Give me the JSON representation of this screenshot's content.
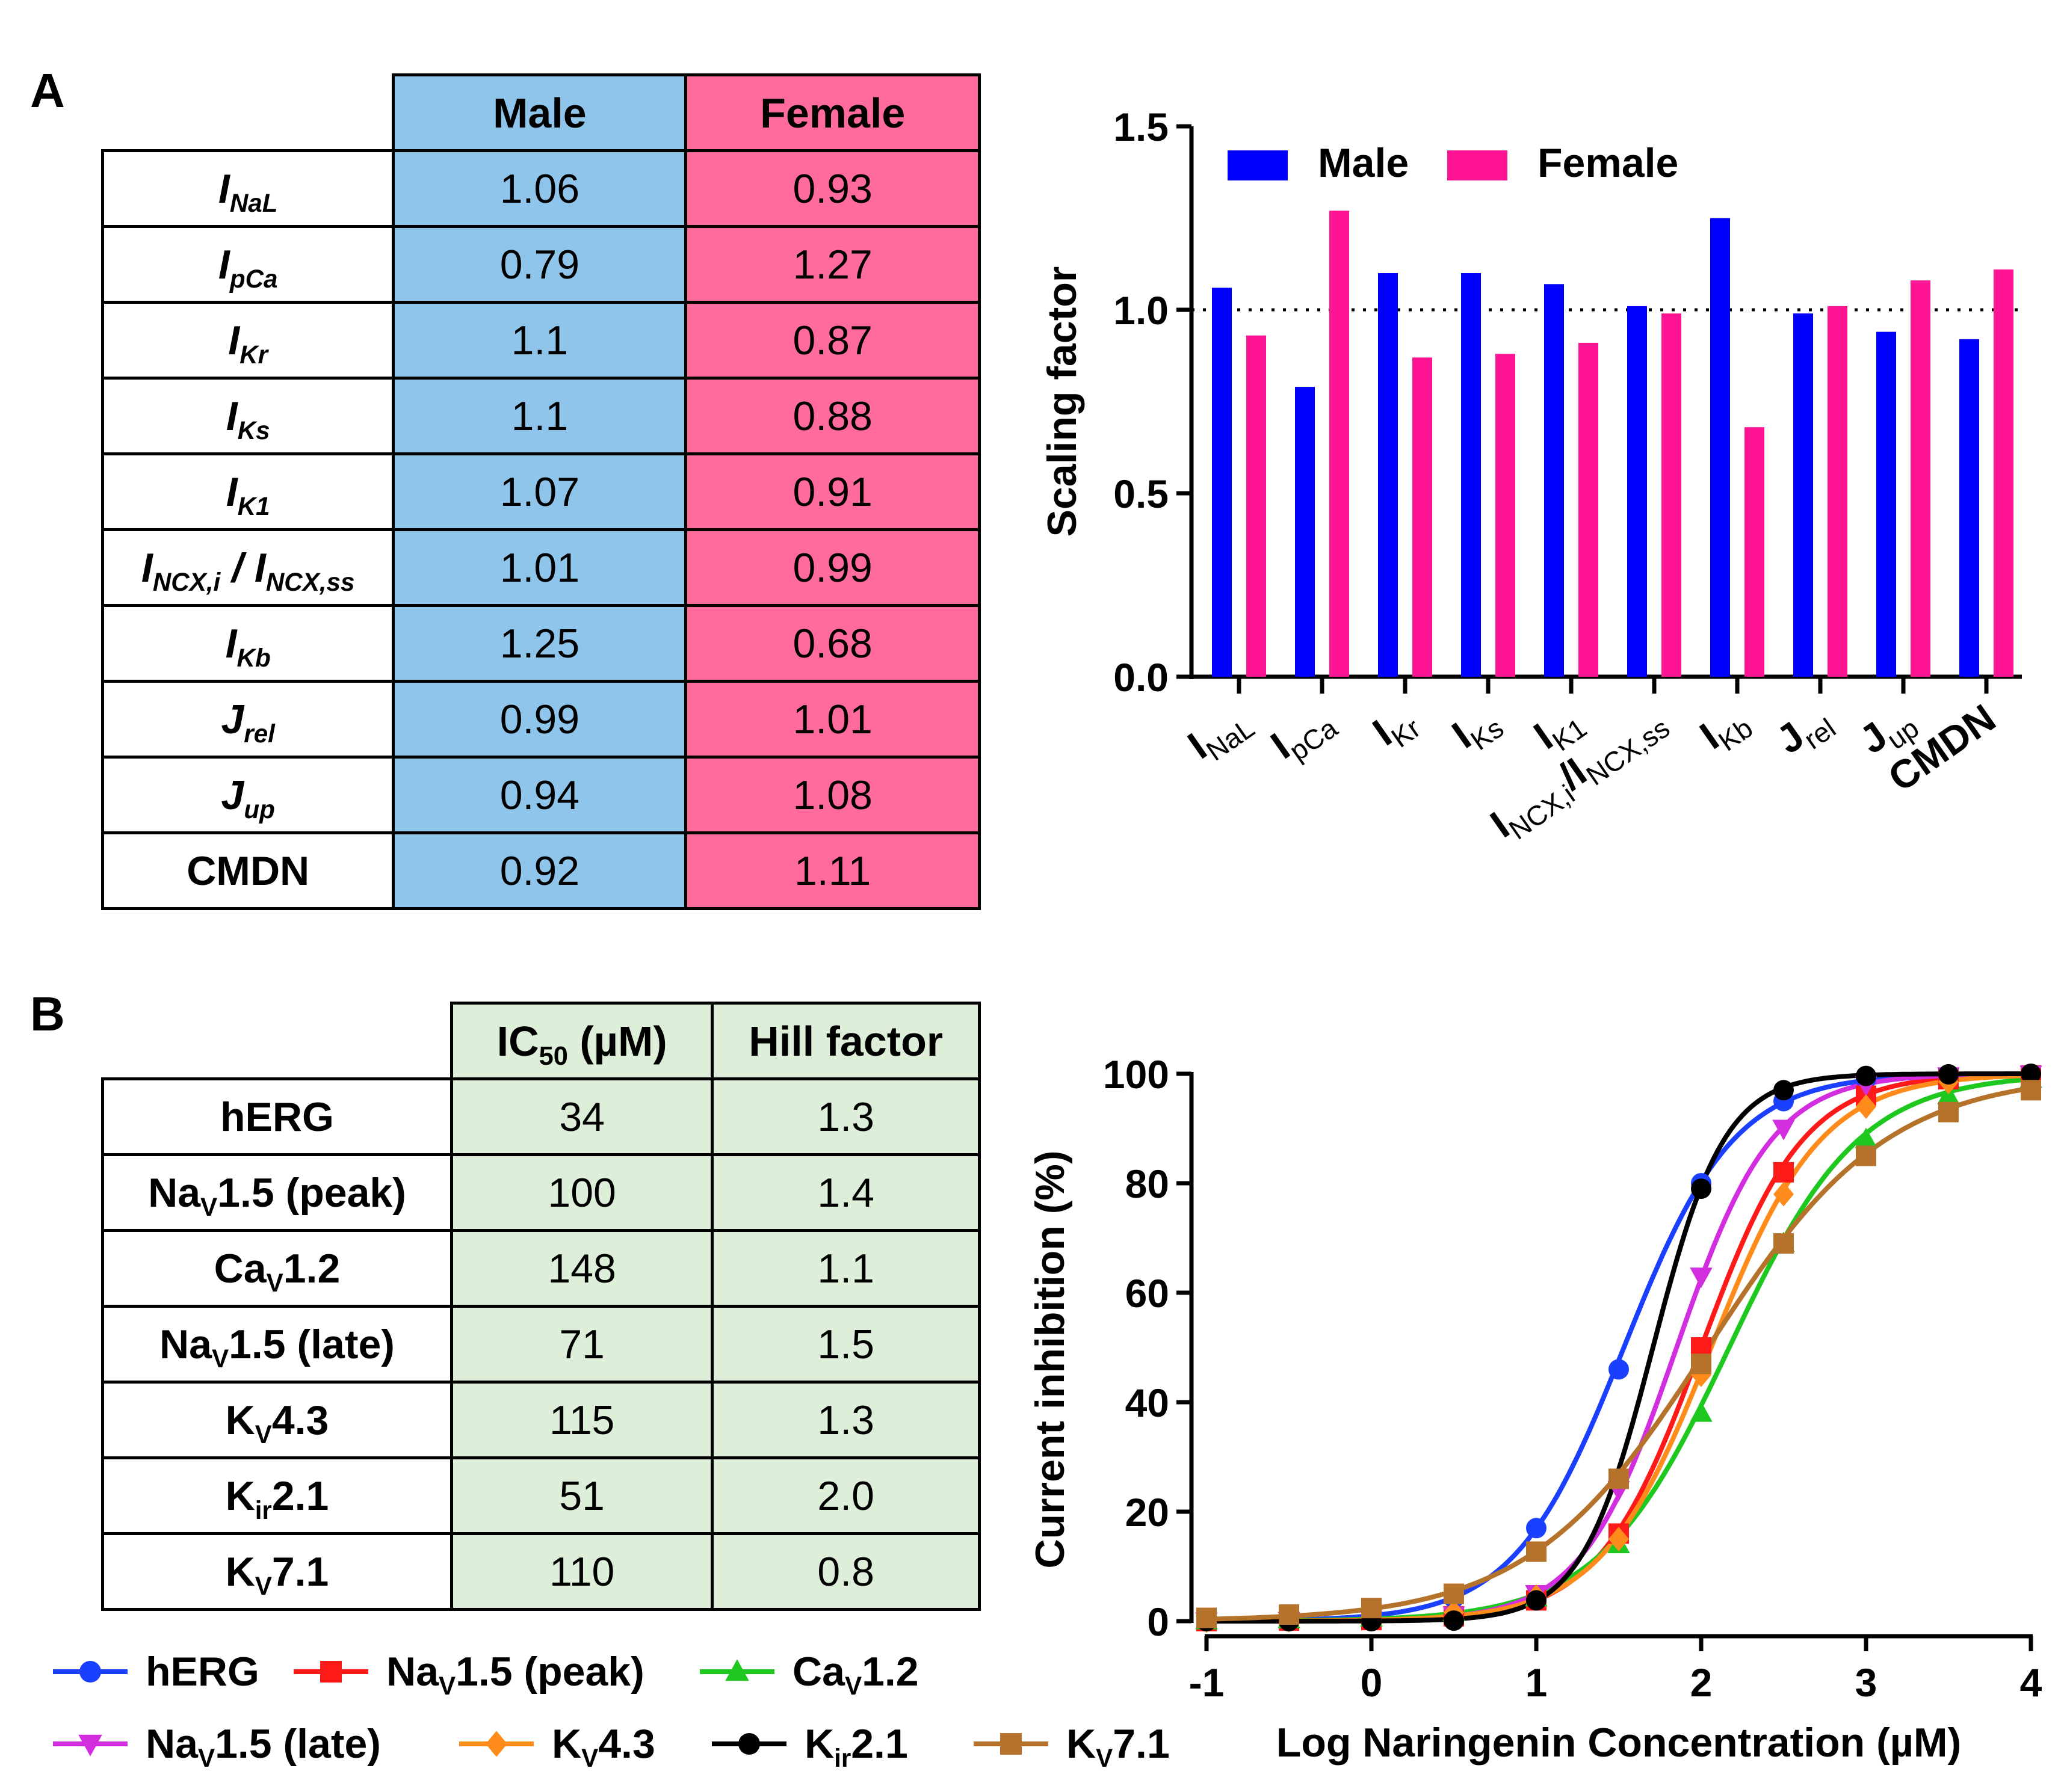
{
  "panelA": {
    "label": "A",
    "table": {
      "col_headers": [
        "Male",
        "Female"
      ],
      "rows": [
        {
          "name": "I",
          "sub": "NaL",
          "male": "1.06",
          "female": "0.93"
        },
        {
          "name": "I",
          "sub": "pCa",
          "male": "0.79",
          "female": "1.27"
        },
        {
          "name": "I",
          "sub": "Kr",
          "male": "1.1",
          "female": "0.87"
        },
        {
          "name": "I",
          "sub": "Ks",
          "male": "1.1",
          "female": "0.88"
        },
        {
          "name": "I",
          "sub": "K1",
          "male": "1.07",
          "female": "0.91"
        },
        {
          "name": "I",
          "sub": "NCX,i",
          "name2": " / I",
          "sub2": "NCX,ss",
          "male": "1.01",
          "female": "0.99"
        },
        {
          "name": "I",
          "sub": "Kb",
          "male": "1.25",
          "female": "0.68"
        },
        {
          "name": "J",
          "sub": "rel",
          "male": "0.99",
          "female": "1.01"
        },
        {
          "name": "J",
          "sub": "up",
          "male": "0.94",
          "female": "1.08"
        },
        {
          "name": "CMDN",
          "sub": "",
          "male": "0.92",
          "female": "1.11"
        }
      ]
    }
  },
  "panelB": {
    "label": "B",
    "table": {
      "col_header_1": "IC",
      "col_header_1_sub": "50",
      "col_header_1_unit": " (µM)",
      "col_header_2": "Hill factor",
      "rows": [
        {
          "name": "hERG",
          "sub": "",
          "tail": "",
          "ic50": "34",
          "hill": "1.3"
        },
        {
          "name": "Na",
          "sub": "V",
          "tail": "1.5 (peak)",
          "ic50": "100",
          "hill": "1.4"
        },
        {
          "name": "Ca",
          "sub": "V",
          "tail": "1.2",
          "ic50": "148",
          "hill": "1.1"
        },
        {
          "name": "Na",
          "sub": "V",
          "tail": "1.5 (late)",
          "ic50": "71",
          "hill": "1.5"
        },
        {
          "name": "K",
          "sub": "V",
          "tail": "4.3",
          "ic50": "115",
          "hill": "1.3"
        },
        {
          "name": "K",
          "sub": "ir",
          "tail": "2.1",
          "ic50": "51",
          "hill": "2.0"
        },
        {
          "name": "K",
          "sub": "V",
          "tail": "7.1",
          "ic50": "110",
          "hill": "0.8"
        }
      ]
    }
  },
  "chart_data": [
    {
      "type": "bar",
      "title": "",
      "xlabel": "",
      "ylabel": "Scaling factor",
      "ylim": [
        0,
        1.5
      ],
      "yticks": [
        "0.0",
        "0.5",
        "1.0",
        "1.5"
      ],
      "reference_line": 1.0,
      "legend_position": "top-left",
      "categories": [
        {
          "main": "I",
          "sub": "NaL"
        },
        {
          "main": "I",
          "sub": "pCa"
        },
        {
          "main": "I",
          "sub": "Kr"
        },
        {
          "main": "I",
          "sub": "Ks"
        },
        {
          "main": "I",
          "sub": "K1"
        },
        {
          "main": "I",
          "sub": "NCX,i",
          "main2": "/I",
          "sub2": "NCX,ss"
        },
        {
          "main": "I",
          "sub": "Kb"
        },
        {
          "main": "J",
          "sub": "rel"
        },
        {
          "main": "J",
          "sub": "up"
        },
        {
          "main": "CMDN",
          "sub": ""
        }
      ],
      "series": [
        {
          "name": "Male",
          "color": "#0000ff",
          "values": [
            1.06,
            0.79,
            1.1,
            1.1,
            1.07,
            1.01,
            1.25,
            0.99,
            0.94,
            0.92
          ]
        },
        {
          "name": "Female",
          "color": "#ff1493",
          "values": [
            0.93,
            1.27,
            0.87,
            0.88,
            0.91,
            0.99,
            0.68,
            1.01,
            1.08,
            1.11
          ]
        }
      ]
    },
    {
      "type": "scatter",
      "title": "",
      "xlabel": "Log Naringenin Concentration (µM)",
      "ylabel": "Current inhibition (%)",
      "xlim": [
        -1,
        4
      ],
      "ylim": [
        0,
        100
      ],
      "xticks": [
        "-1",
        "0",
        "1",
        "2",
        "3",
        "4"
      ],
      "yticks": [
        "0",
        "20",
        "40",
        "60",
        "80",
        "100"
      ],
      "x": [
        -1,
        -0.5,
        0,
        0.5,
        1,
        1.5,
        2,
        2.5,
        3,
        3.5,
        4
      ],
      "legend_position": "bottom-left",
      "series": [
        {
          "name": "hERG",
          "legend_main": "hERG",
          "legend_sub": "",
          "legend_tail": "",
          "color": "#1a3fff",
          "marker": "circle",
          "ic50": 34,
          "hill": 1.3,
          "values": [
            0.1,
            0.3,
            1.1,
            4.2,
            17,
            46,
            80,
            95,
            99,
            99.7,
            99.9
          ]
        },
        {
          "name": "NaV1.5 (peak)",
          "legend_main": "Na",
          "legend_sub": "V",
          "legend_tail": "1.5 (peak)",
          "color": "#ff1a1a",
          "marker": "square",
          "ic50": 100,
          "hill": 1.4,
          "values": [
            0,
            0.1,
            0.2,
            0.9,
            3.8,
            16,
            50,
            82,
            96,
            99,
            99.7
          ]
        },
        {
          "name": "CaV1.2",
          "legend_main": "Ca",
          "legend_sub": "V",
          "legend_tail": "1.2",
          "color": "#1ec81e",
          "marker": "triangle-up",
          "ic50": 148,
          "hill": 1.1,
          "values": [
            0.1,
            0.3,
            0.6,
            1.6,
            4.3,
            14,
            38,
            69,
            88,
            96,
            99
          ]
        },
        {
          "name": "NaV1.5 (late)",
          "legend_main": "Na",
          "legend_sub": "V",
          "legend_tail": "1.5 (late)",
          "color": "#d22ee0",
          "marker": "triangle-down",
          "ic50": 71,
          "hill": 1.5,
          "values": [
            0,
            0.1,
            0.2,
            1.1,
            5,
            24,
            63,
            90,
            98,
            99.6,
            99.9
          ]
        },
        {
          "name": "KV4.3",
          "legend_main": "K",
          "legend_sub": "V",
          "legend_tail": "4.3",
          "color": "#ff8c1a",
          "marker": "diamond",
          "ic50": 115,
          "hill": 1.3,
          "values": [
            0.1,
            0.2,
            0.6,
            1.6,
            4.5,
            15,
            45,
            78,
            94,
            98.5,
            99.6
          ]
        },
        {
          "name": "Kir2.1",
          "legend_main": "K",
          "legend_sub": "ir",
          "legend_tail": "2.1",
          "color": "#000000",
          "marker": "circle",
          "ic50": 51,
          "hill": 2.0,
          "values": [
            0,
            0,
            0,
            0.1,
            3.8,
            26,
            79,
            97,
            99.6,
            99.9,
            100
          ]
        },
        {
          "name": "KV7.1",
          "legend_main": "K",
          "legend_sub": "V",
          "legend_tail": "7.1",
          "color": "#b5722a",
          "marker": "square",
          "ic50": 110,
          "hill": 0.8,
          "values": [
            0.6,
            1.2,
            2.4,
            5,
            12.7,
            26,
            47,
            69,
            85,
            93,
            97
          ]
        }
      ]
    }
  ]
}
